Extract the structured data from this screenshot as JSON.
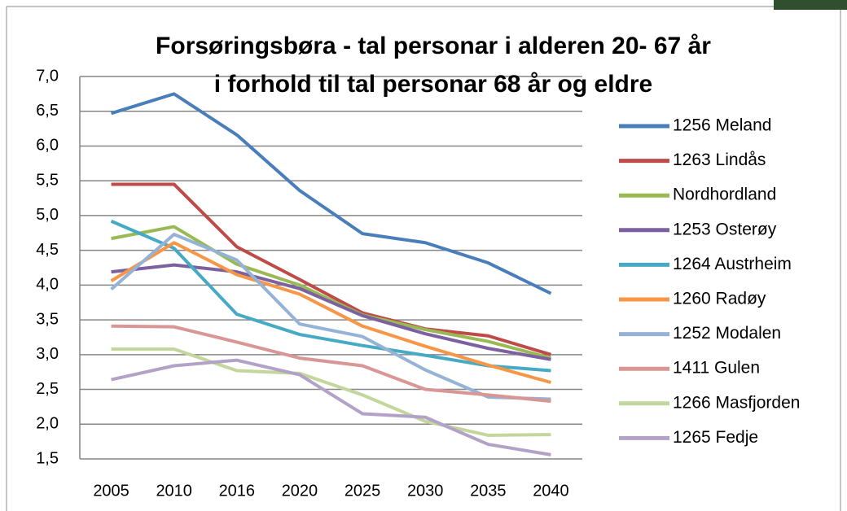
{
  "chart_data": {
    "type": "line",
    "title": [
      "Forsøringsbøra - tal personar i alderen 20- 67 år",
      "i forhold til tal personar 68 år og eldre"
    ],
    "categories": [
      "2005",
      "2010",
      "2016",
      "2020",
      "2025",
      "2030",
      "2035",
      "2040"
    ],
    "series": [
      {
        "name": "1256 Meland",
        "color": "#4a7ebb",
        "values": [
          6.47,
          6.75,
          6.16,
          5.36,
          4.74,
          4.61,
          4.32,
          3.88
        ]
      },
      {
        "name": "1263 Lindås",
        "color": "#be4b48",
        "values": [
          5.45,
          5.45,
          4.55,
          4.08,
          3.6,
          3.37,
          3.27,
          3.0
        ]
      },
      {
        "name": "Nordhordland",
        "color": "#98b954",
        "values": [
          4.67,
          4.84,
          4.3,
          4.0,
          3.57,
          3.36,
          3.19,
          2.95
        ]
      },
      {
        "name": "1253 Osterøy",
        "color": "#7d60a0",
        "values": [
          4.19,
          4.29,
          4.19,
          3.95,
          3.56,
          3.3,
          3.09,
          2.93
        ]
      },
      {
        "name": "1264 Austrheim",
        "color": "#46aac5",
        "values": [
          4.92,
          4.53,
          3.58,
          3.29,
          3.13,
          2.99,
          2.84,
          2.77
        ]
      },
      {
        "name": "1260 Radøy",
        "color": "#f79646",
        "values": [
          4.06,
          4.61,
          4.15,
          3.87,
          3.41,
          3.12,
          2.85,
          2.6
        ]
      },
      {
        "name": "1252 Modalen",
        "color": "#95b3d7",
        "values": [
          3.94,
          4.73,
          4.36,
          3.44,
          3.26,
          2.78,
          2.39,
          2.36
        ]
      },
      {
        "name": "1411 Gulen",
        "color": "#d99694",
        "values": [
          3.41,
          3.4,
          3.18,
          2.95,
          2.84,
          2.5,
          2.42,
          2.33
        ]
      },
      {
        "name": "1266 Masfjorden",
        "color": "#c3d69b",
        "values": [
          3.08,
          3.08,
          2.77,
          2.73,
          2.42,
          2.04,
          1.84,
          1.85
        ]
      },
      {
        "name": "1265 Fedje",
        "color": "#b3a2c7",
        "values": [
          2.64,
          2.84,
          2.92,
          2.71,
          2.15,
          2.1,
          1.71,
          1.56
        ]
      }
    ],
    "ylim": [
      1.5,
      7.0
    ],
    "yticks": [
      {
        "value": 1.5,
        "label": "1,5"
      },
      {
        "value": 2,
        "label": "2,0"
      },
      {
        "value": 2.5,
        "label": "2,5"
      },
      {
        "value": 3,
        "label": "3,0"
      },
      {
        "value": 3.5,
        "label": "3,5"
      },
      {
        "value": 4,
        "label": "4,0"
      },
      {
        "value": 4.5,
        "label": "4,5"
      },
      {
        "value": 5,
        "label": "5,0"
      },
      {
        "value": 5.5,
        "label": "5,5"
      },
      {
        "value": 6,
        "label": "6,0"
      },
      {
        "value": 6.5,
        "label": "6,5"
      },
      {
        "value": 7,
        "label": "7,0"
      }
    ],
    "grid": true,
    "legend": "right"
  }
}
